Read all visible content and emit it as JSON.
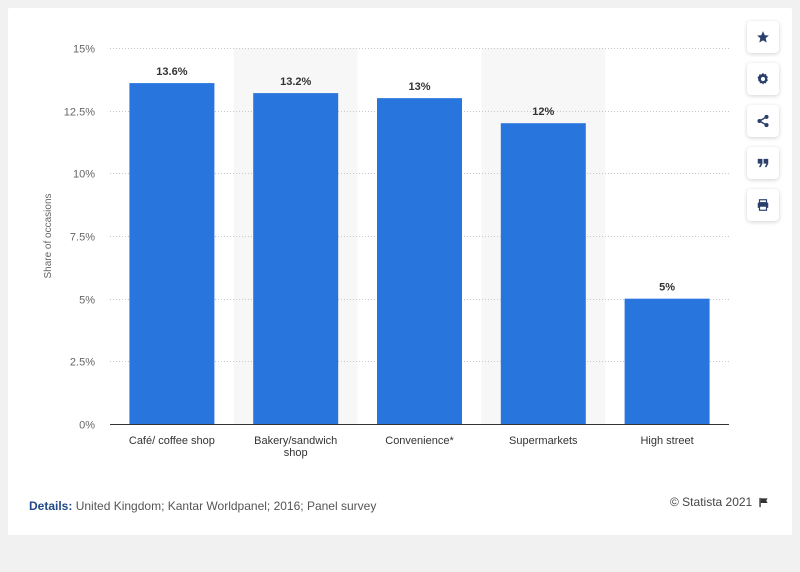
{
  "chart_data": {
    "type": "bar",
    "categories": [
      "Café/ coffee shop",
      "Bakery/sandwich shop",
      "Convenience*",
      "Supermarkets",
      "High street"
    ],
    "category_lines": [
      [
        "Café/ coffee shop"
      ],
      [
        "Bakery/sandwich",
        "shop"
      ],
      [
        "Convenience*"
      ],
      [
        "Supermarkets"
      ],
      [
        "High street"
      ]
    ],
    "values": [
      13.6,
      13.2,
      13,
      12,
      5
    ],
    "value_labels": [
      "13.6%",
      "13.2%",
      "13%",
      "12%",
      "5%"
    ],
    "ylabel": "Share of occasions",
    "ylim": [
      0,
      15
    ],
    "yticks": [
      0,
      2.5,
      5,
      7.5,
      10,
      12.5,
      15
    ],
    "ytick_labels": [
      "0%",
      "2.5%",
      "5%",
      "7.5%",
      "10%",
      "12.5%",
      "15%"
    ],
    "grid": true,
    "bar_color": "#2876dd",
    "band_color": "#f7f7f7"
  },
  "sidebar": {
    "buttons": [
      {
        "icon": "star-icon"
      },
      {
        "icon": "gear-icon"
      },
      {
        "icon": "share-icon"
      },
      {
        "icon": "quote-icon"
      },
      {
        "icon": "print-icon"
      }
    ]
  },
  "footer": {
    "details_label": "Details:",
    "details_text": " United Kingdom; Kantar Worldpanel; 2016; Panel survey",
    "copyright": "© Statista 2021"
  },
  "colors": {
    "accent": "#234a88",
    "icon": "#2a3f6c"
  }
}
